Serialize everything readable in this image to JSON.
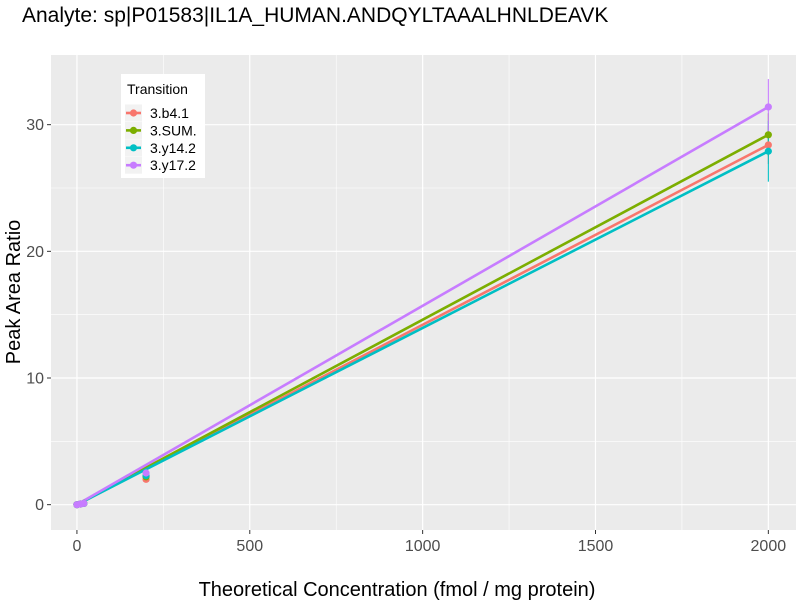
{
  "chart_data": {
    "type": "line",
    "title": "Analyte: sp|P01583|IL1A_HUMAN.ANDQYLTAAALHNLDEAVK",
    "xlabel": "Theoretical Concentration (fmol / mg protein)",
    "ylabel": "Peak Area Ratio",
    "xlim": [
      -75,
      2080
    ],
    "ylim": [
      -2.0,
      35.5
    ],
    "x_ticks": [
      0,
      500,
      1000,
      1500,
      2000
    ],
    "x_tick_labels": [
      "0",
      "500",
      "1000",
      "1500",
      "2000"
    ],
    "y_ticks": [
      0,
      10,
      20,
      30
    ],
    "y_tick_labels": [
      "0",
      "10",
      "20",
      "30"
    ],
    "grid": true,
    "legend": {
      "title": "Transition",
      "position": "top-left"
    },
    "series": [
      {
        "name": "3.b4.1",
        "color": "#F8766D",
        "fit": {
          "x": [
            0,
            2000
          ],
          "y": [
            0.0,
            28.4
          ]
        },
        "points": [
          {
            "x": 0,
            "y": 0.0,
            "err": 0.1
          },
          {
            "x": 10,
            "y": 0.05,
            "err": 0.05
          },
          {
            "x": 20,
            "y": 0.1,
            "err": 0.05
          },
          {
            "x": 200,
            "y": 2.0,
            "err": 0.2
          },
          {
            "x": 2000,
            "y": 28.4,
            "err": 1.5
          }
        ]
      },
      {
        "name": "3.SUM.",
        "color": "#7CAE00",
        "fit": {
          "x": [
            0,
            2000
          ],
          "y": [
            0.0,
            29.2
          ]
        },
        "points": [
          {
            "x": 0,
            "y": 0.0,
            "err": 0.1
          },
          {
            "x": 10,
            "y": 0.05,
            "err": 0.05
          },
          {
            "x": 20,
            "y": 0.1,
            "err": 0.05
          },
          {
            "x": 200,
            "y": 2.2,
            "err": 0.2
          },
          {
            "x": 2000,
            "y": 29.2,
            "err": 1.7
          }
        ]
      },
      {
        "name": "3.y14.2",
        "color": "#00BFC4",
        "fit": {
          "x": [
            0,
            2000
          ],
          "y": [
            0.0,
            27.9
          ]
        },
        "points": [
          {
            "x": 0,
            "y": 0.0,
            "err": 0.1
          },
          {
            "x": 10,
            "y": 0.05,
            "err": 0.05
          },
          {
            "x": 20,
            "y": 0.1,
            "err": 0.05
          },
          {
            "x": 200,
            "y": 2.3,
            "err": 0.2
          },
          {
            "x": 2000,
            "y": 27.9,
            "err": 2.4
          }
        ]
      },
      {
        "name": "3.y17.2",
        "color": "#C77CFF",
        "fit": {
          "x": [
            0,
            2000
          ],
          "y": [
            0.0,
            31.4
          ]
        },
        "points": [
          {
            "x": 0,
            "y": 0.0,
            "err": 0.1
          },
          {
            "x": 10,
            "y": 0.05,
            "err": 0.05
          },
          {
            "x": 20,
            "y": 0.1,
            "err": 0.05
          },
          {
            "x": 200,
            "y": 2.5,
            "err": 0.2
          },
          {
            "x": 2000,
            "y": 31.4,
            "err": 2.2
          }
        ]
      }
    ]
  }
}
